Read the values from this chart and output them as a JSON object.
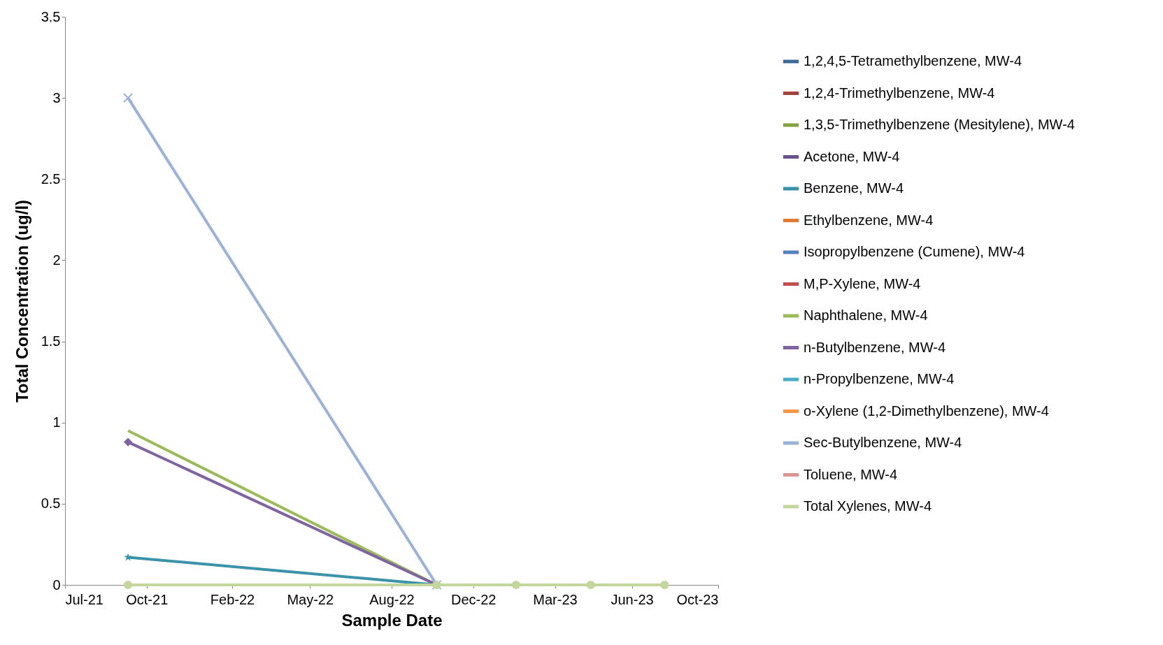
{
  "chart_data": {
    "type": "line",
    "xlabel": "Sample Date",
    "ylabel": "Total Concentration (ug/l)",
    "x": [
      "2021-09-20",
      "2022-10-22",
      "2023-02-01",
      "2023-05-08",
      "2023-08-11"
    ],
    "xlim": [
      "2021-07-01",
      "2023-10-19"
    ],
    "xticks": [
      {
        "value": "2021-07-01",
        "label": "Jul-21"
      },
      {
        "value": "2021-10-14",
        "label": "Oct-21"
      },
      {
        "value": "2022-02-01",
        "label": "Feb-22"
      },
      {
        "value": "2022-05-12",
        "label": "May-22"
      },
      {
        "value": "2022-08-25",
        "label": "Aug-22"
      },
      {
        "value": "2022-12-08",
        "label": "Dec-22"
      },
      {
        "value": "2023-03-23",
        "label": "Mar-23"
      },
      {
        "value": "2023-06-30",
        "label": "Jun-23"
      },
      {
        "value": "2023-10-19",
        "label": "Oct-23"
      }
    ],
    "ylim": [
      0,
      3.5
    ],
    "yticks": [
      0,
      0.5,
      1,
      1.5,
      2,
      2.5,
      3,
      3.5
    ],
    "grid": false,
    "legend": "right",
    "series": [
      {
        "name": "1,2,4,5-Tetramethylbenzene, MW-4",
        "color": "#3c6897",
        "marker": "diamond",
        "values": [
          null,
          null,
          null,
          null,
          null
        ]
      },
      {
        "name": "1,2,4-Trimethylbenzene, MW-4",
        "color": "#a5433f",
        "marker": "square",
        "values": [
          null,
          null,
          null,
          null,
          null
        ]
      },
      {
        "name": "1,3,5-Trimethylbenzene (Mesitylene), MW-4",
        "color": "#82a140",
        "marker": "triangle",
        "values": [
          null,
          null,
          null,
          null,
          null
        ]
      },
      {
        "name": "Acetone, MW-4",
        "color": "#6a5290",
        "marker": "cross",
        "values": [
          null,
          null,
          null,
          null,
          null
        ]
      },
      {
        "name": "Benzene, MW-4",
        "color": "#3a93a8",
        "marker": "star",
        "values": [
          0.17,
          0,
          null,
          null,
          null
        ]
      },
      {
        "name": "Ethylbenzene, MW-4",
        "color": "#e07b31",
        "marker": "circle",
        "values": [
          null,
          null,
          null,
          null,
          null
        ]
      },
      {
        "name": "Isopropylbenzene (Cumene), MW-4",
        "color": "#4f81bd",
        "marker": "cross",
        "values": [
          null,
          null,
          null,
          null,
          null
        ]
      },
      {
        "name": "M,P-Xylene, MW-4",
        "color": "#c0504d",
        "marker": "none",
        "values": [
          null,
          null,
          null,
          null,
          null
        ]
      },
      {
        "name": "Naphthalene, MW-4",
        "color": "#9bbb59",
        "marker": "none",
        "values": [
          0.95,
          0,
          null,
          null,
          null
        ]
      },
      {
        "name": "n-Butylbenzene, MW-4",
        "color": "#8064a2",
        "marker": "diamond",
        "values": [
          0.88,
          0,
          null,
          null,
          null
        ]
      },
      {
        "name": "n-Propylbenzene, MW-4",
        "color": "#4bacc6",
        "marker": "square",
        "values": [
          null,
          null,
          null,
          null,
          null
        ]
      },
      {
        "name": "o-Xylene (1,2-Dimethylbenzene), MW-4",
        "color": "#f79646",
        "marker": "triangle",
        "values": [
          null,
          null,
          null,
          null,
          null
        ]
      },
      {
        "name": "Sec-Butylbenzene, MW-4",
        "color": "#9ab2d8",
        "marker": "cross",
        "values": [
          3,
          0,
          null,
          null,
          null
        ]
      },
      {
        "name": "Toluene, MW-4",
        "color": "#d99694",
        "marker": "star",
        "values": [
          null,
          null,
          null,
          null,
          null
        ]
      },
      {
        "name": "Total Xylenes, MW-4",
        "color": "#c3d69b",
        "marker": "circle",
        "values": [
          0,
          0,
          0,
          0,
          0
        ]
      }
    ]
  }
}
